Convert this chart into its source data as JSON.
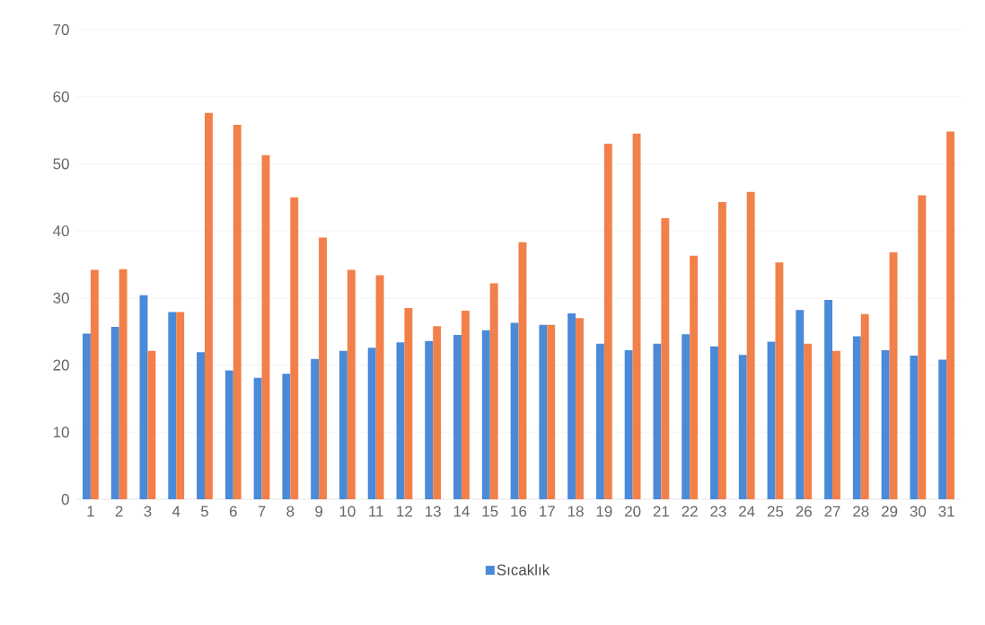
{
  "chart_data": {
    "type": "bar",
    "categories": [
      "1",
      "2",
      "3",
      "4",
      "5",
      "6",
      "7",
      "8",
      "9",
      "10",
      "11",
      "12",
      "13",
      "14",
      "15",
      "16",
      "17",
      "18",
      "19",
      "20",
      "21",
      "22",
      "23",
      "24",
      "25",
      "26",
      "27",
      "28",
      "29",
      "30",
      "31"
    ],
    "series": [
      {
        "name": "Sıcaklık",
        "color": "#4a8ad8",
        "values": [
          24.7,
          25.7,
          30.4,
          27.9,
          21.9,
          19.2,
          18.1,
          18.7,
          20.9,
          22.1,
          22.6,
          23.4,
          23.6,
          24.5,
          25.2,
          26.3,
          26.0,
          27.7,
          23.2,
          22.2,
          23.2,
          24.6,
          22.8,
          21.5,
          23.5,
          28.2,
          29.7,
          24.3,
          22.2,
          21.4,
          20.8
        ]
      },
      {
        "color": "#f2804a",
        "values": [
          34.2,
          34.3,
          22.1,
          27.9,
          57.6,
          55.8,
          51.3,
          45.0,
          39.0,
          34.2,
          33.4,
          28.5,
          25.8,
          28.1,
          32.2,
          38.3,
          26.0,
          27.0,
          53.0,
          54.5,
          41.9,
          36.3,
          44.3,
          45.8,
          35.3,
          23.2,
          22.1,
          27.6,
          36.8,
          45.3,
          54.8
        ]
      }
    ],
    "ylim": [
      0,
      70
    ],
    "yticks": [
      0,
      10,
      20,
      30,
      40,
      50,
      60,
      70
    ],
    "grid": "y",
    "legend": "bottom"
  }
}
